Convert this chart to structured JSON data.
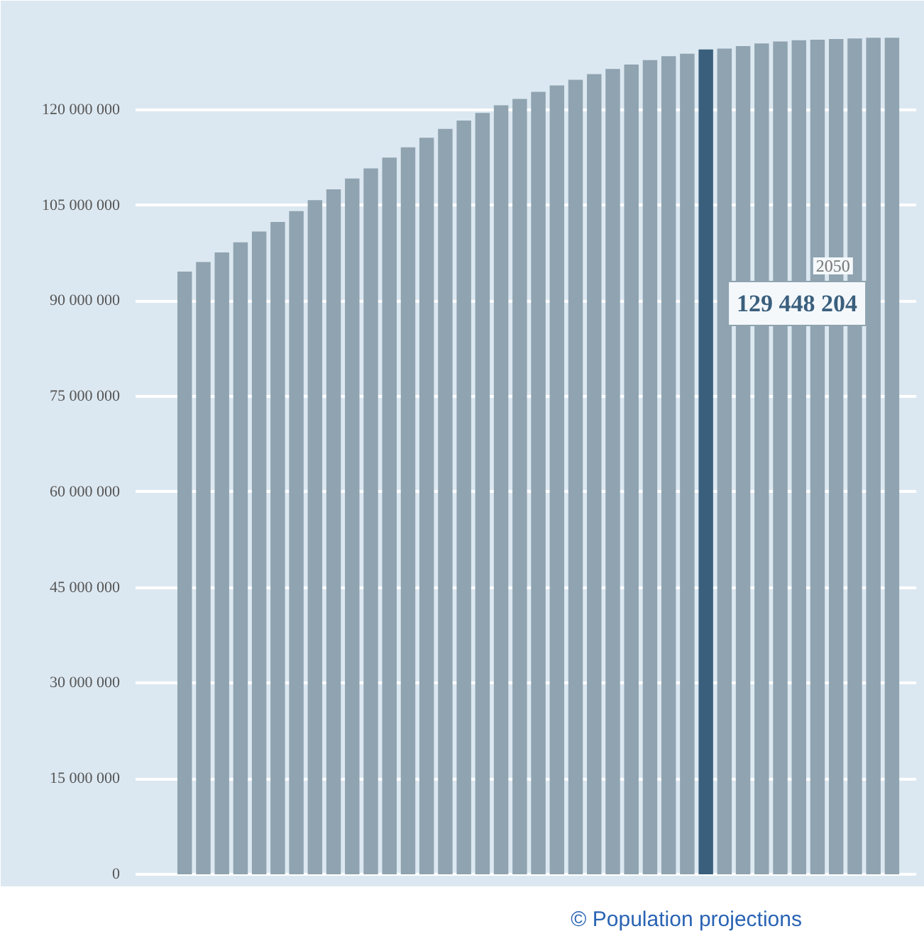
{
  "chart_data": {
    "type": "bar",
    "categories": [
      null,
      null,
      null,
      null,
      null,
      null,
      null,
      null,
      null,
      null,
      null,
      null,
      null,
      null,
      null,
      null,
      null,
      null,
      null,
      null,
      null,
      null,
      null,
      null,
      null,
      null,
      null,
      null,
      null,
      null,
      null,
      null,
      null,
      null,
      null,
      null,
      null,
      null,
      null
    ],
    "values": [
      94600000,
      96100000,
      97600000,
      99200000,
      100900000,
      102400000,
      104100000,
      105800000,
      107500000,
      109200000,
      110800000,
      112500000,
      114100000,
      115600000,
      117000000,
      118300000,
      119500000,
      120700000,
      121700000,
      122800000,
      123800000,
      124700000,
      125600000,
      126400000,
      127100000,
      127800000,
      128400000,
      128800000,
      129448204,
      129600000,
      130000000,
      130400000,
      130700000,
      130900000,
      131000000,
      131100000,
      131200000,
      131300000,
      131300000
    ],
    "colors": [
      "#8fa3b0",
      "#8fa3b0",
      "#8fa3b0",
      "#8fa3b0",
      "#8fa3b0",
      "#8fa3b0",
      "#8fa3b0",
      "#8fa3b0",
      "#8fa3b0",
      "#8fa3b0",
      "#8fa3b0",
      "#8fa3b0",
      "#8fa3b0",
      "#8fa3b0",
      "#8fa3b0",
      "#8fa3b0",
      "#8fa3b0",
      "#8fa3b0",
      "#8fa3b0",
      "#8fa3b0",
      "#8fa3b0",
      "#8fa3b0",
      "#8fa3b0",
      "#8fa3b0",
      "#8fa3b0",
      "#8fa3b0",
      "#8fa3b0",
      "#8fa3b0",
      "#3a5f7d",
      "#8fa3b0",
      "#8fa3b0",
      "#8fa3b0",
      "#8fa3b0",
      "#8fa3b0",
      "#8fa3b0",
      "#8fa3b0",
      "#8fa3b0",
      "#8fa3b0",
      "#8fa3b0"
    ],
    "ylim": [
      -2000000,
      136000000
    ],
    "yticks": [
      {
        "value": 0,
        "label": "0"
      },
      {
        "value": 15000000,
        "label": "15 000 000"
      },
      {
        "value": 30000000,
        "label": "30 000 000"
      },
      {
        "value": 45000000,
        "label": "45 000 000"
      },
      {
        "value": 60000000,
        "label": "60 000 000"
      },
      {
        "value": 75000000,
        "label": "75 000 000"
      },
      {
        "value": 90000000,
        "label": "90 000 000"
      },
      {
        "value": 105000000,
        "label": "105 000 000"
      },
      {
        "value": 120000000,
        "label": "120 000 000"
      }
    ],
    "grid": "y",
    "annotations": [
      "2050",
      "129 448 204",
      "© Population projections"
    ]
  }
}
